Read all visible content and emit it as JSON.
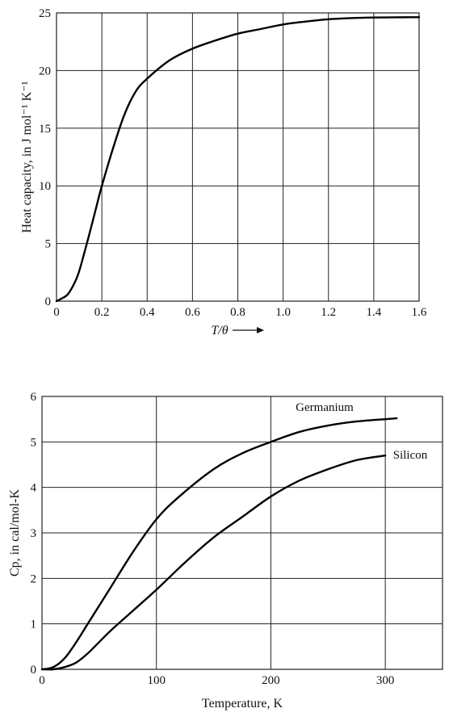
{
  "chart_data": [
    {
      "type": "line",
      "xlabel": "T/θ",
      "ylabel": "Heat capacity, in J mol⁻¹ K⁻¹",
      "xlim": [
        0,
        1.6
      ],
      "ylim": [
        0,
        25
      ],
      "x_ticks": [
        "0",
        "0.2",
        "0.4",
        "0.6",
        "0.8",
        "1.0",
        "1.2",
        "1.4",
        "1.6"
      ],
      "y_ticks": [
        "0",
        "5",
        "10",
        "15",
        "20",
        "25"
      ],
      "grid": true,
      "series": [
        {
          "x": [
            0,
            0.02,
            0.05,
            0.08,
            0.1,
            0.12,
            0.15,
            0.18,
            0.2,
            0.25,
            0.3,
            0.35,
            0.4,
            0.5,
            0.6,
            0.7,
            0.8,
            0.9,
            1.0,
            1.1,
            1.2,
            1.3,
            1.4,
            1.5,
            1.6
          ],
          "y": [
            0,
            0.2,
            0.6,
            1.6,
            2.6,
            4.0,
            6.2,
            8.5,
            10.0,
            13.3,
            16.2,
            18.2,
            19.3,
            20.9,
            21.9,
            22.6,
            23.2,
            23.6,
            24.0,
            24.25,
            24.45,
            24.55,
            24.6,
            24.62,
            24.63
          ]
        }
      ]
    },
    {
      "type": "line",
      "xlabel": "Temperature, K",
      "ylabel": "Cp, in cal/mol-K",
      "xlim": [
        0,
        350
      ],
      "ylim": [
        0,
        6
      ],
      "x_ticks": [
        "0",
        "100",
        "200",
        "300"
      ],
      "y_ticks": [
        "0",
        "1",
        "2",
        "3",
        "4",
        "5",
        "6"
      ],
      "grid": true,
      "series": [
        {
          "name": "Germanium",
          "x": [
            0,
            10,
            20,
            30,
            40,
            50,
            60,
            80,
            100,
            120,
            150,
            175,
            200,
            225,
            250,
            275,
            300,
            310
          ],
          "y": [
            0,
            0.05,
            0.25,
            0.6,
            1.0,
            1.4,
            1.8,
            2.6,
            3.3,
            3.8,
            4.4,
            4.75,
            5.0,
            5.22,
            5.36,
            5.45,
            5.5,
            5.52
          ]
        },
        {
          "name": "Silicon",
          "x": [
            0,
            10,
            20,
            30,
            40,
            50,
            60,
            80,
            100,
            125,
            150,
            175,
            200,
            225,
            250,
            275,
            300
          ],
          "y": [
            0,
            0.0,
            0.05,
            0.15,
            0.35,
            0.6,
            0.85,
            1.3,
            1.75,
            2.35,
            2.9,
            3.35,
            3.8,
            4.15,
            4.4,
            4.6,
            4.7
          ]
        }
      ]
    }
  ]
}
